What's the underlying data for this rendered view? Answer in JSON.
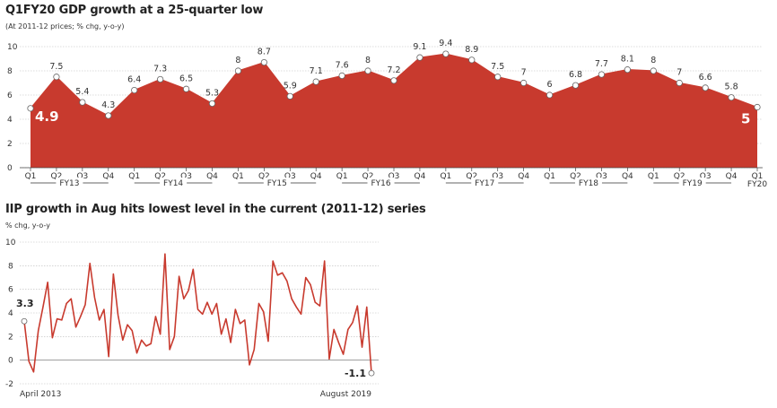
{
  "chart_data": [
    {
      "type": "area",
      "title": "Q1FY20 GDP growth at a 25-quarter low",
      "subtitle": "(At 2011-12 prices; % chg, y-o-y)",
      "ylim": [
        0,
        10
      ],
      "yticks": [
        "0",
        "2",
        "4",
        "6",
        "8",
        "10"
      ],
      "grid": true,
      "color": "#c83a2e",
      "categories": [
        "Q1",
        "Q2",
        "Q3",
        "Q4",
        "Q1",
        "Q2",
        "Q3",
        "Q4",
        "Q1",
        "Q2",
        "Q3",
        "Q4",
        "Q1",
        "Q2",
        "Q3",
        "Q4",
        "Q1",
        "Q2",
        "Q3",
        "Q4",
        "Q1",
        "Q2",
        "Q3",
        "Q4",
        "Q1",
        "Q2",
        "Q3",
        "Q4",
        "Q1"
      ],
      "values": [
        4.9,
        7.5,
        5.4,
        4.3,
        6.4,
        7.3,
        6.5,
        5.3,
        8,
        8.7,
        5.9,
        7.1,
        7.6,
        8,
        7.2,
        9.1,
        9.4,
        8.9,
        7.5,
        7,
        6,
        6.8,
        7.7,
        8.1,
        8,
        7,
        6.6,
        5.8,
        5
      ],
      "value_labels": [
        "4.9",
        "7.5",
        "5.4",
        "4.3",
        "6.4",
        "7.3",
        "6.5",
        "5.3",
        "8",
        "8.7",
        "5.9",
        "7.1",
        "7.6",
        "8",
        "7.2",
        "9.1",
        "9.4",
        "8.9",
        "7.5",
        "7",
        "6",
        "6.8",
        "7.7",
        "8.1",
        "8",
        "7",
        "6.6",
        "5.8",
        "5"
      ],
      "fiscal_years": [
        {
          "label": "FY13",
          "start": 0,
          "end": 3
        },
        {
          "label": "FY14",
          "start": 4,
          "end": 7
        },
        {
          "label": "FY15",
          "start": 8,
          "end": 11
        },
        {
          "label": "FY16",
          "start": 12,
          "end": 15
        },
        {
          "label": "FY17",
          "start": 16,
          "end": 19
        },
        {
          "label": "FY18",
          "start": 20,
          "end": 23
        },
        {
          "label": "FY19",
          "start": 24,
          "end": 27
        },
        {
          "label": "FY20",
          "start": 28,
          "end": 28
        }
      ]
    },
    {
      "type": "line",
      "title": "IIP growth in Aug hits lowest level in the current (2011-12) series",
      "ylabel": "% chg, y-o-y",
      "ylim": [
        -2,
        10
      ],
      "yticks": [
        "-2",
        "0",
        "2",
        "4",
        "6",
        "8",
        "10"
      ],
      "grid": true,
      "color": "#c83a2e",
      "x_start_label": "April 2013",
      "x_end_label": "August 2019",
      "start_label": "3.3",
      "end_label": "-1.1",
      "values": [
        3.3,
        -0.1,
        -1.0,
        2.5,
        4.5,
        6.6,
        1.9,
        3.5,
        3.4,
        4.8,
        5.2,
        2.8,
        3.7,
        4.7,
        8.2,
        5.3,
        3.4,
        4.3,
        0.3,
        7.3,
        3.8,
        1.7,
        3.0,
        2.5,
        0.6,
        1.7,
        1.2,
        1.4,
        3.7,
        2.2,
        9.0,
        0.9,
        2.0,
        7.1,
        5.2,
        5.9,
        7.7,
        4.3,
        3.9,
        4.9,
        3.9,
        4.8,
        2.2,
        3.5,
        1.5,
        4.3,
        3.1,
        3.4,
        -0.4,
        0.9,
        4.8,
        4.1,
        1.6,
        8.4,
        7.2,
        7.4,
        6.7,
        5.2,
        4.5,
        3.9,
        7.0,
        6.4,
        4.9,
        4.6,
        8.4,
        0.1,
        2.6,
        1.5,
        0.5,
        2.6,
        3.2,
        4.6,
        1.1,
        4.5,
        -1.1
      ]
    }
  ]
}
